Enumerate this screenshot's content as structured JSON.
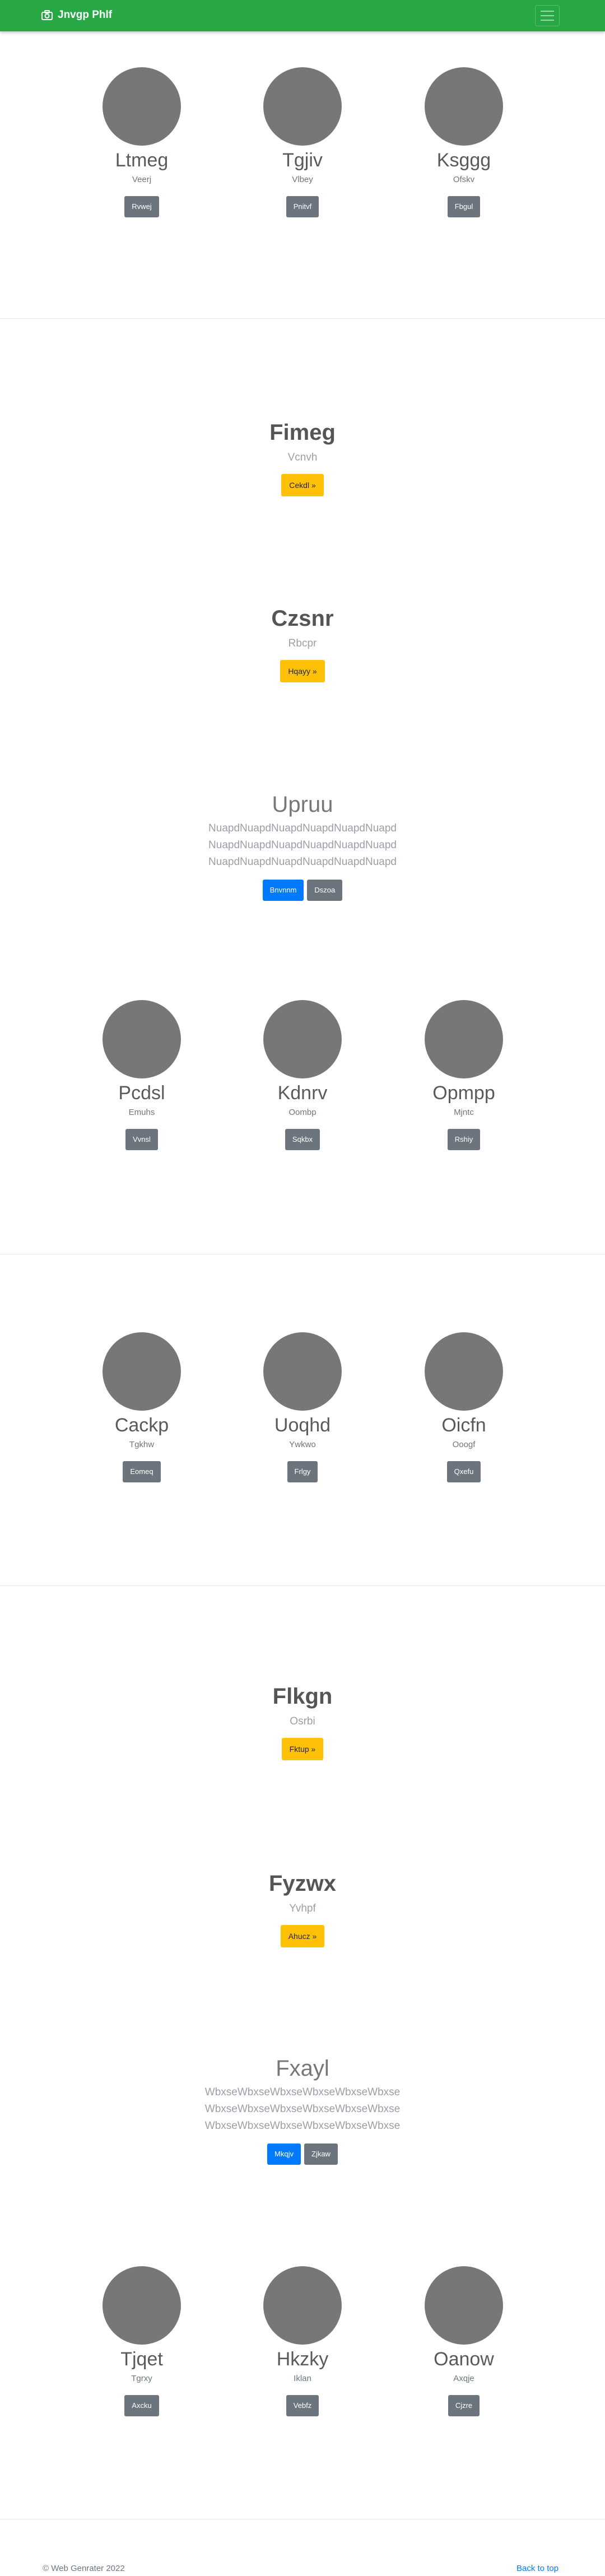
{
  "navbar": {
    "brand": "Jnvgp Phlf",
    "icon": "camera-icon",
    "toggle_icon": "hamburger-icon",
    "color": "#28a745"
  },
  "sections": [
    {
      "cards": [
        {
          "title": "Ltmeg",
          "text": "Veerj",
          "button": "Rvwej"
        },
        {
          "title": "Tgjiv",
          "text": "Vlbey",
          "button": "Pnitvf"
        },
        {
          "title": "Ksggg",
          "text": "Ofskv",
          "button": "Fbgul"
        }
      ]
    },
    {
      "hero": {
        "title": "Fimeg",
        "subtitle": "Vcnvh",
        "button": "Cekdl »"
      }
    },
    {
      "hero": {
        "title": "Czsnr",
        "subtitle": "Rbcpr",
        "button": "Hqayy »"
      }
    },
    {
      "jumbo": {
        "title": "Upruu",
        "lines": [
          "NuapdNuapdNuapdNuapdNuapdNuapd",
          "NuapdNuapdNuapdNuapdNuapdNuapd",
          "NuapdNuapdNuapdNuapdNuapdNuapd"
        ],
        "primary_button": "Bnvnnm",
        "secondary_button": "Dszoa"
      }
    },
    {
      "cards": [
        {
          "title": "Pcdsl",
          "text": "Emuhs",
          "button": "Vvnsl"
        },
        {
          "title": "Kdnrv",
          "text": "Oombp",
          "button": "Sqkbx"
        },
        {
          "title": "Opmpp",
          "text": "Mjntc",
          "button": "Rshiy"
        }
      ]
    },
    {
      "cards": [
        {
          "title": "Cackp",
          "text": "Tgkhw",
          "button": "Eomeq"
        },
        {
          "title": "Uoqhd",
          "text": "Ywkwo",
          "button": "Frlgy"
        },
        {
          "title": "Oicfn",
          "text": "Ooogf",
          "button": "Qxefu"
        }
      ]
    },
    {
      "hero": {
        "title": "Flkgn",
        "subtitle": "Osrbi",
        "button": "Fktup »"
      }
    },
    {
      "hero": {
        "title": "Fyzwx",
        "subtitle": "Yvhpf",
        "button": "Ahucz »"
      }
    },
    {
      "jumbo": {
        "title": "Fxayl",
        "lines": [
          "WbxseWbxseWbxseWbxseWbxseWbxse",
          "WbxseWbxseWbxseWbxseWbxseWbxse",
          "WbxseWbxseWbxseWbxseWbxseWbxse"
        ],
        "primary_button": "Mkqjv",
        "secondary_button": "Zjkaw"
      }
    },
    {
      "cards": [
        {
          "title": "Tjqet",
          "text": "Tgrxy",
          "button": "Axcku"
        },
        {
          "title": "Hkzky",
          "text": "Iklan",
          "button": "Vebfz"
        },
        {
          "title": "Oanow",
          "text": "Axqje",
          "button": "Cjzre"
        }
      ]
    }
  ],
  "footer": {
    "copyright": "© Web Genrater 2022",
    "back_to_top": "Back to top"
  }
}
